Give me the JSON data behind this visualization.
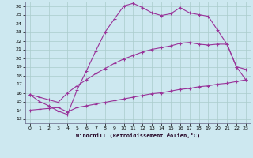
{
  "bg_color": "#cde8f0",
  "line_color": "#993399",
  "grid_color": "#aacccc",
  "xlabel": "Windchill (Refroidissement éolien,°C)",
  "ylabel_ticks": [
    13,
    14,
    15,
    16,
    17,
    18,
    19,
    20,
    21,
    22,
    23,
    24,
    25,
    26
  ],
  "xticks": [
    0,
    1,
    2,
    3,
    4,
    5,
    6,
    7,
    8,
    9,
    10,
    11,
    12,
    13,
    14,
    15,
    16,
    17,
    18,
    19,
    20,
    21,
    22,
    23
  ],
  "xlim": [
    -0.5,
    23.5
  ],
  "ylim": [
    12.5,
    26.5
  ],
  "line1_x": [
    0,
    1,
    2,
    3,
    4,
    5,
    6,
    7,
    8,
    9,
    10,
    11,
    12,
    13,
    14,
    15,
    16,
    17,
    18,
    19,
    20,
    21,
    22,
    23
  ],
  "line1_y": [
    15.8,
    15.0,
    14.5,
    13.9,
    13.5,
    16.3,
    18.5,
    20.8,
    23.0,
    24.5,
    26.0,
    26.3,
    25.8,
    25.2,
    24.9,
    25.1,
    25.8,
    25.2,
    25.0,
    24.8,
    23.2,
    21.6,
    19.0,
    17.5
  ],
  "line2_x": [
    0,
    1,
    2,
    3,
    4,
    5,
    6,
    7,
    8,
    9,
    10,
    11,
    12,
    13,
    14,
    15,
    16,
    17,
    18,
    19,
    20,
    21,
    22,
    23
  ],
  "line2_y": [
    15.8,
    15.5,
    15.2,
    14.9,
    16.0,
    16.8,
    17.5,
    18.2,
    18.8,
    19.4,
    19.9,
    20.3,
    20.7,
    21.0,
    21.2,
    21.4,
    21.7,
    21.8,
    21.6,
    21.5,
    21.6,
    21.6,
    19.0,
    18.7
  ],
  "line3_x": [
    0,
    1,
    2,
    3,
    4,
    5,
    6,
    7,
    8,
    9,
    10,
    11,
    12,
    13,
    14,
    15,
    16,
    17,
    18,
    19,
    20,
    21,
    22,
    23
  ],
  "line3_y": [
    14.0,
    14.1,
    14.2,
    14.3,
    13.8,
    14.3,
    14.5,
    14.7,
    14.9,
    15.1,
    15.3,
    15.5,
    15.7,
    15.9,
    16.0,
    16.2,
    16.4,
    16.5,
    16.7,
    16.8,
    17.0,
    17.1,
    17.3,
    17.5
  ]
}
